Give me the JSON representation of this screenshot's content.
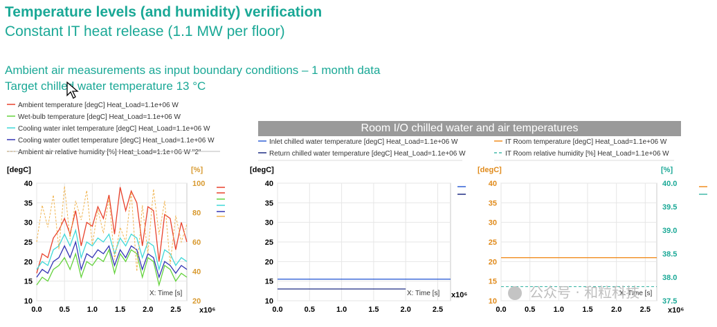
{
  "header": {
    "title": "Temperature levels (and humidity) verification",
    "subtitle": "Constant IT heat release (1.1 MW per floor)"
  },
  "info": {
    "line1": "Ambient air measurements as input boundary conditions – 1 month data",
    "line2": "Target chilled water temperature 13 °C"
  },
  "banner": "Room I/O chilled water and air temperatures",
  "watermark": "公众号 · 和粒科技",
  "colors": {
    "ambient": "#e8402a",
    "wetbulb": "#64d23c",
    "inlet": "#3ed8d8",
    "outlet": "#3232b4",
    "humidity": "#f0b450",
    "room_inlet": "#2f5fd6",
    "room_return": "#1c2a82",
    "it_temp": "#f08c1e",
    "it_rh": "#40b8a8",
    "accent": "#1aa896"
  },
  "chart_data": [
    {
      "type": "line",
      "xlabel": "X: Time [s]",
      "x_multiplier": "x10⁶",
      "y_unit_left": "[degC]",
      "y_unit_right": "[%]",
      "xlim": [
        0,
        2.7
      ],
      "ylim_left": [
        10,
        40
      ],
      "ylim_right": [
        20,
        100
      ],
      "xticks": [
        "0.0",
        "0.5",
        "1.0",
        "1.5",
        "2.0",
        "2.5"
      ],
      "yticks_left": [
        "40",
        "35",
        "30",
        "25",
        "20",
        "15",
        "10"
      ],
      "yticks_right": [
        "100",
        "80",
        "60",
        "40",
        "20"
      ],
      "legend": [
        "Ambient temperature [degC] Heat_Load=1.1e+06 W",
        "Wet-bulb temperature [degC] Heat_Load=1.1e+06 W",
        "Cooling water inlet temperature [degC] Heat_Load=1.1e+06 W",
        "Cooling water outlet temperature [degC] Heat_Load=1.1e+06 W",
        "Ambient air relative humidity [%] Heat_Load=1.1e+06 W \"2\""
      ],
      "series": [
        {
          "name": "Ambient temperature [degC] Heat_Load=1.1e+06 W",
          "axis": "left",
          "x": [
            0,
            0.1,
            0.2,
            0.3,
            0.4,
            0.5,
            0.6,
            0.7,
            0.8,
            0.9,
            1.0,
            1.1,
            1.2,
            1.3,
            1.4,
            1.5,
            1.6,
            1.7,
            1.8,
            1.9,
            2.0,
            2.1,
            2.2,
            2.3,
            2.4,
            2.5,
            2.6,
            2.7
          ],
          "values": [
            17,
            22,
            21,
            26,
            28,
            31,
            27,
            33,
            24,
            30,
            29,
            34,
            31,
            37,
            27,
            39,
            33,
            38,
            35,
            24,
            34,
            33,
            20,
            32,
            31,
            23,
            30,
            25
          ]
        },
        {
          "name": "Wet-bulb temperature [degC] Heat_Load=1.1e+06 W",
          "axis": "left",
          "x": [
            0,
            0.1,
            0.2,
            0.3,
            0.4,
            0.5,
            0.6,
            0.7,
            0.8,
            0.9,
            1.0,
            1.1,
            1.2,
            1.3,
            1.4,
            1.5,
            1.6,
            1.7,
            1.8,
            1.9,
            2.0,
            2.1,
            2.2,
            2.3,
            2.4,
            2.5,
            2.6,
            2.7
          ],
          "values": [
            14,
            16,
            15,
            18,
            19,
            21,
            18,
            22,
            16,
            20,
            19,
            21,
            20,
            23,
            17,
            22,
            20,
            23,
            22,
            16,
            21,
            20,
            14,
            19,
            18,
            15,
            17,
            16
          ]
        },
        {
          "name": "Cooling water inlet temperature [degC] Heat_Load=1.1e+06 W",
          "axis": "left",
          "x": [
            0,
            0.1,
            0.2,
            0.3,
            0.4,
            0.5,
            0.6,
            0.7,
            0.8,
            0.9,
            1.0,
            1.1,
            1.2,
            1.3,
            1.4,
            1.5,
            1.6,
            1.7,
            1.8,
            1.9,
            2.0,
            2.1,
            2.2,
            2.3,
            2.4,
            2.5,
            2.6,
            2.7
          ],
          "values": [
            18,
            20,
            19,
            23,
            24,
            27,
            24,
            28,
            21,
            25,
            24,
            26,
            25,
            27,
            22,
            26,
            24,
            27,
            26,
            21,
            25,
            24,
            18,
            23,
            22,
            19,
            21,
            20
          ]
        },
        {
          "name": "Cooling water outlet temperature [degC] Heat_Load=1.1e+06 W",
          "axis": "left",
          "x": [
            0,
            0.1,
            0.2,
            0.3,
            0.4,
            0.5,
            0.6,
            0.7,
            0.8,
            0.9,
            1.0,
            1.1,
            1.2,
            1.3,
            1.4,
            1.5,
            1.6,
            1.7,
            1.8,
            1.9,
            2.0,
            2.1,
            2.2,
            2.3,
            2.4,
            2.5,
            2.6,
            2.7
          ],
          "values": [
            16,
            18,
            17,
            20,
            21,
            24,
            21,
            25,
            18,
            22,
            21,
            23,
            22,
            24,
            19,
            23,
            21,
            24,
            23,
            18,
            22,
            21,
            16,
            20,
            19,
            17,
            19,
            18
          ]
        },
        {
          "name": "Ambient air relative humidity [%] Heat_Load=1.1e+06 W \"2\"",
          "axis": "right",
          "x": [
            0,
            0.1,
            0.2,
            0.3,
            0.4,
            0.5,
            0.6,
            0.7,
            0.8,
            0.9,
            1.0,
            1.1,
            1.2,
            1.3,
            1.4,
            1.5,
            1.6,
            1.7,
            1.8,
            1.9,
            2.0,
            2.1,
            2.2,
            2.3,
            2.4,
            2.5,
            2.6,
            2.7
          ],
          "values": [
            60,
            85,
            70,
            92,
            55,
            98,
            62,
            88,
            75,
            95,
            58,
            82,
            66,
            90,
            48,
            70,
            60,
            94,
            40,
            85,
            52,
            96,
            65,
            88,
            45,
            78,
            60,
            72
          ]
        }
      ]
    },
    {
      "type": "line",
      "xlabel": "X: Time [s]",
      "x_multiplier": "x10⁶",
      "y_unit_left": "[degC]",
      "xlim": [
        0,
        2.7
      ],
      "ylim_left": [
        10,
        40
      ],
      "xticks": [
        "0.0",
        "0.5",
        "1.0",
        "1.5",
        "2.0",
        "2.5"
      ],
      "yticks_left": [
        "40",
        "35",
        "30",
        "25",
        "20",
        "15",
        "10"
      ],
      "legend": [
        "Inlet chilled water temperature [degC] Heat_Load=1.1e+06 W",
        "Return chilled water temperature [degC] Heat_Load=1.1e+06 W"
      ],
      "series": [
        {
          "name": "Inlet chilled water temperature [degC] Heat_Load=1.1e+06 W",
          "axis": "left",
          "x": [
            0,
            2.7
          ],
          "values": [
            15.5,
            15.5
          ]
        },
        {
          "name": "Return chilled water temperature [degC] Heat_Load=1.1e+06 W",
          "axis": "left",
          "x": [
            0,
            2.0
          ],
          "values": [
            13,
            13
          ]
        }
      ]
    },
    {
      "type": "line",
      "xlabel": "X: Time [s]",
      "x_multiplier": "x10⁶",
      "y_unit_left": "[degC]",
      "y_unit_right": "[%]",
      "xlim": [
        0,
        2.7
      ],
      "ylim_left": [
        10,
        40
      ],
      "ylim_right": [
        37.5,
        40.0
      ],
      "xticks": [
        "0.0",
        "0.5",
        "1.0",
        "1.5",
        "2.0",
        "2.5"
      ],
      "yticks_left": [
        "40",
        "35",
        "30",
        "25",
        "20",
        "15",
        "10"
      ],
      "yticks_right": [
        "40.0",
        "39.5",
        "39.0",
        "38.5",
        "38.0",
        "37.5"
      ],
      "legend": [
        "IT Room temperature [degC] Heat_Load=1.1e+06 W",
        "IT Room relative humidity [%] Heat_Load=1.1e+06 W"
      ],
      "series": [
        {
          "name": "IT Room temperature [degC] Heat_Load=1.1e+06 W",
          "axis": "left",
          "x": [
            0,
            2.7
          ],
          "values": [
            21,
            21
          ]
        },
        {
          "name": "IT Room relative humidity [%] Heat_Load=1.1e+06 W",
          "axis": "right",
          "x": [
            0,
            2.7
          ],
          "values": [
            37.8,
            37.8
          ]
        }
      ]
    }
  ]
}
